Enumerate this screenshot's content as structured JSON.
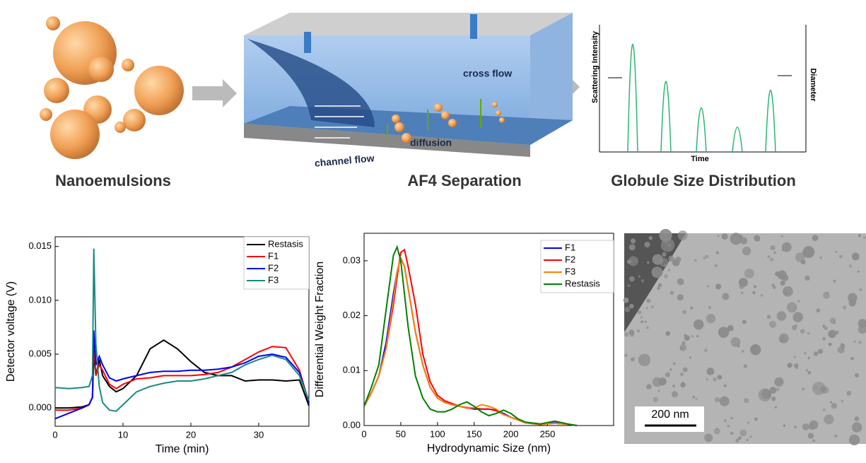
{
  "diagram": {
    "panels": [
      "Nanoemulsions",
      "AF4 Separation",
      "Globule Size Distribution"
    ],
    "labels": {
      "cross_flow": "cross flow",
      "diffusion": "diffusion",
      "channel_flow": "channel flow",
      "y_left": "Scattering Intensity",
      "y_right": "Diameter",
      "x": "Time"
    }
  },
  "chart_data": [
    {
      "type": "line",
      "xlabel": "Time (min)",
      "ylabel": "Detector voltage (V)",
      "x": [
        0,
        2,
        4,
        5,
        5.5,
        5.7,
        6,
        6.5,
        7,
        8,
        9,
        10,
        12,
        14,
        16,
        18,
        20,
        22,
        24,
        26,
        28,
        30,
        32,
        34,
        36,
        37.4
      ],
      "series": [
        {
          "name": "Restasis",
          "color": "#000000",
          "values": [
            0,
            0,
            0.0001,
            0.0003,
            0.001,
            0.005,
            0.003,
            0.0045,
            0.003,
            0.002,
            0.0015,
            0.0018,
            0.003,
            0.0055,
            0.0063,
            0.0055,
            0.0043,
            0.0033,
            0.003,
            0.003,
            0.0025,
            0.0026,
            0.0026,
            0.0025,
            0.0026,
            0.0002
          ]
        },
        {
          "name": "F1",
          "color": "#ff0000",
          "values": [
            -0.0002,
            -0.0002,
            0,
            0.0003,
            0.001,
            0.006,
            0.003,
            0.004,
            0.0035,
            0.0022,
            0.0018,
            0.0022,
            0.0027,
            0.0028,
            0.003,
            0.003,
            0.003,
            0.0031,
            0.0033,
            0.0038,
            0.0045,
            0.0052,
            0.0057,
            0.0056,
            0.0035,
            0.0005
          ]
        },
        {
          "name": "F2",
          "color": "#0000ff",
          "values": [
            -0.001,
            -0.0005,
            0,
            0.0003,
            0.001,
            0.0072,
            0.004,
            0.0048,
            0.004,
            0.0028,
            0.0025,
            0.0027,
            0.003,
            0.0033,
            0.0034,
            0.0034,
            0.0035,
            0.0035,
            0.0036,
            0.0038,
            0.0042,
            0.0048,
            0.005,
            0.0047,
            0.0033,
            0.0005
          ]
        },
        {
          "name": "F3",
          "color": "#1a8a80",
          "values": [
            0.0019,
            0.0018,
            0.0019,
            0.002,
            0.003,
            0.0148,
            0.006,
            0.002,
            0.0005,
            -0.0002,
            -0.0003,
            0.0003,
            0.0015,
            0.002,
            0.0023,
            0.0025,
            0.0025,
            0.0027,
            0.003,
            0.0033,
            0.004,
            0.0045,
            0.0049,
            0.0045,
            0.003,
            0.0007
          ]
        }
      ],
      "xlim": [
        0,
        37.4
      ],
      "xticks": [
        0,
        10,
        20,
        30
      ],
      "ylim": [
        -0.0017,
        0.0159
      ],
      "yticks": [
        {
          "value": 0,
          "label": "0.000"
        },
        {
          "value": 0.005,
          "label": "0.005"
        },
        {
          "value": 0.01,
          "label": "0.010"
        },
        {
          "value": 0.015,
          "label": "0.015"
        }
      ],
      "legend": "upper right"
    },
    {
      "type": "line",
      "xlabel": "Hydrodynamic Size (nm)",
      "ylabel": "Differential Weight Fraction",
      "x": [
        0,
        10,
        20,
        30,
        40,
        45,
        50,
        55,
        60,
        70,
        80,
        90,
        100,
        110,
        120,
        130,
        140,
        150,
        160,
        170,
        180,
        190,
        200,
        210,
        220,
        240,
        260,
        280,
        290
      ],
      "series": [
        {
          "name": "F1",
          "color": "#0000ff",
          "values": [
            0.0035,
            0.006,
            0.009,
            0.015,
            0.024,
            0.028,
            0.0305,
            0.029,
            0.025,
            0.017,
            0.011,
            0.007,
            0.005,
            0.0042,
            0.0038,
            0.0035,
            0.0033,
            0.003,
            0.003,
            0.003,
            0.0028,
            0.0022,
            0.0015,
            0.001,
            0.0005,
            0.0002,
            0.0005,
            0.0002,
            0
          ]
        },
        {
          "name": "F2",
          "color": "#ff0000",
          "values": [
            0.0035,
            0.006,
            0.009,
            0.014,
            0.022,
            0.027,
            0.0315,
            0.032,
            0.029,
            0.022,
            0.013,
            0.008,
            0.0055,
            0.0045,
            0.004,
            0.0035,
            0.0032,
            0.0032,
            0.003,
            0.003,
            0.0027,
            0.002,
            0.0015,
            0.001,
            0.0005,
            0.0002,
            0.0004,
            0.0002,
            0
          ]
        },
        {
          "name": "F3",
          "color": "#ff8000",
          "values": [
            0.0035,
            0.006,
            0.009,
            0.014,
            0.023,
            0.028,
            0.0305,
            0.029,
            0.025,
            0.017,
            0.011,
            0.007,
            0.005,
            0.0042,
            0.0038,
            0.0035,
            0.0033,
            0.0032,
            0.0038,
            0.0035,
            0.003,
            0.002,
            0.0015,
            0.001,
            0.0005,
            0.0002,
            0.0004,
            0.0002,
            0
          ]
        },
        {
          "name": "Restasis",
          "color": "#008000",
          "values": [
            0.0035,
            0.007,
            0.011,
            0.021,
            0.031,
            0.0325,
            0.03,
            0.024,
            0.018,
            0.009,
            0.005,
            0.003,
            0.0025,
            0.0025,
            0.003,
            0.0038,
            0.0043,
            0.0035,
            0.0025,
            0.0018,
            0.0022,
            0.0028,
            0.0022,
            0.0012,
            0.0006,
            0.0003,
            0.0008,
            0.0002,
            0
          ]
        }
      ],
      "xlim": [
        0,
        340
      ],
      "xticks": [
        0,
        50,
        100,
        150,
        200,
        250
      ],
      "ylim": [
        0,
        0.035
      ],
      "yticks": [
        {
          "value": 0,
          "label": "0.00"
        },
        0.01,
        0.02,
        0.03
      ],
      "legend": "upper right"
    }
  ],
  "image": {
    "scale_bar": "200 nm"
  }
}
